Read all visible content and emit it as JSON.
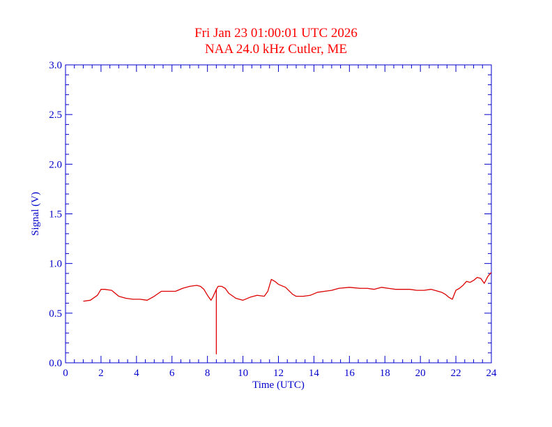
{
  "chart_data": {
    "type": "line",
    "title": "Fri Jan 23 01:00:01 UTC 2026",
    "subtitle": "NAA 24.0 kHz Cutler, ME",
    "xlabel": "Time (UTC)",
    "ylabel": "Signal (V)",
    "xlim": [
      0,
      24
    ],
    "ylim": [
      0.0,
      3.0
    ],
    "x_ticks": [
      "0",
      "2",
      "4",
      "6",
      "8",
      "10",
      "12",
      "14",
      "16",
      "18",
      "20",
      "22",
      "24"
    ],
    "y_ticks": [
      "0.0",
      "0.5",
      "1.0",
      "1.5",
      "2.0",
      "2.5",
      "3.0"
    ],
    "grid": false,
    "colors": {
      "axes": "#0000cc",
      "series": "#dd0000",
      "title": "#ff0000"
    },
    "series": [
      {
        "x": [
          1.0,
          1.4,
          1.8,
          2.0,
          2.2,
          2.6,
          3.0,
          3.4,
          3.8,
          4.2,
          4.6,
          5.0,
          5.4,
          5.8,
          6.2,
          6.6,
          7.0,
          7.4,
          7.6,
          7.8,
          8.0,
          8.2,
          8.3,
          8.45,
          8.5,
          8.5,
          8.5,
          8.6,
          8.8,
          9.0,
          9.2,
          9.6,
          10.0,
          10.4,
          10.8,
          11.2,
          11.4,
          11.6,
          11.8,
          12.0,
          12.4,
          12.8,
          13.0,
          13.4,
          13.8,
          14.2,
          14.6,
          15.0,
          15.4,
          16.0,
          16.6,
          17.0,
          17.4,
          17.8,
          18.2,
          18.6,
          19.0,
          19.4,
          19.8,
          20.2,
          20.6,
          21.0,
          21.2,
          21.4,
          21.6,
          21.8,
          22.0,
          22.2,
          22.4,
          22.6,
          22.8,
          23.0,
          23.2,
          23.4,
          23.6,
          23.8,
          24.0
        ],
        "y": [
          0.62,
          0.63,
          0.68,
          0.74,
          0.74,
          0.73,
          0.67,
          0.65,
          0.64,
          0.64,
          0.63,
          0.67,
          0.72,
          0.72,
          0.72,
          0.75,
          0.77,
          0.78,
          0.77,
          0.74,
          0.68,
          0.63,
          0.66,
          0.72,
          0.74,
          0.09,
          0.74,
          0.77,
          0.77,
          0.75,
          0.7,
          0.65,
          0.63,
          0.66,
          0.68,
          0.67,
          0.72,
          0.84,
          0.82,
          0.79,
          0.76,
          0.69,
          0.67,
          0.67,
          0.68,
          0.71,
          0.72,
          0.73,
          0.75,
          0.76,
          0.75,
          0.75,
          0.74,
          0.76,
          0.75,
          0.74,
          0.74,
          0.74,
          0.73,
          0.73,
          0.74,
          0.72,
          0.71,
          0.69,
          0.66,
          0.64,
          0.73,
          0.75,
          0.78,
          0.82,
          0.81,
          0.83,
          0.86,
          0.85,
          0.8,
          0.87,
          0.91
        ]
      }
    ]
  }
}
